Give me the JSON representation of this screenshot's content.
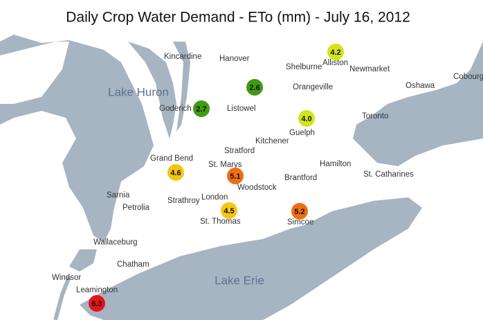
{
  "title": "Daily Crop Water Demand - ETo (mm) - July 16, 2012",
  "lakes": [
    "Lake Huron",
    "Lake Erie"
  ],
  "cities": [
    "Kincardine",
    "Hanover",
    "Shelburne",
    "Alliston",
    "Newmarket",
    "Cobourg",
    "Oshawa",
    "Orangeville",
    "Listowel",
    "Goderich",
    "Toronto",
    "Guelph",
    "Kitchener",
    "Stratford",
    "Grand Bend",
    "St. Marys",
    "Hamilton",
    "Brantford",
    "St. Catharines",
    "Woodstock",
    "Sarnia",
    "London",
    "Strathroy",
    "Petrolia",
    "St. Thomas",
    "Simcoe",
    "Wallaceburg",
    "Chatham",
    "Windsor",
    "Leamington"
  ],
  "stations": [
    {
      "value": "4.2",
      "color": "#d2e41c"
    },
    {
      "value": "2.6",
      "color": "#3f9a14"
    },
    {
      "value": "2.7",
      "color": "#3f9a14"
    },
    {
      "value": "4.0",
      "color": "#d2e41c"
    },
    {
      "value": "4.6",
      "color": "#f4c613"
    },
    {
      "value": "5.1",
      "color": "#ee6e12"
    },
    {
      "value": "4.5",
      "color": "#f4c613"
    },
    {
      "value": "5.2",
      "color": "#ee6e12"
    },
    {
      "value": "6.3",
      "color": "#e4141c"
    }
  ]
}
